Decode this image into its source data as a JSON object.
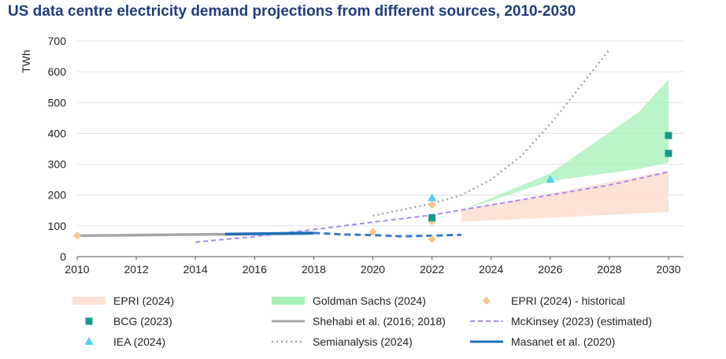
{
  "chart_data": {
    "type": "line",
    "title": "US data centre electricity demand projections from different sources, 2010-2030",
    "ylabel": "TWh",
    "xlabel": "",
    "xlim": [
      2010,
      2030
    ],
    "ylim": [
      0,
      700
    ],
    "xticks": [
      2010,
      2012,
      2014,
      2016,
      2018,
      2020,
      2022,
      2024,
      2026,
      2028,
      2030
    ],
    "yticks": [
      0,
      100,
      200,
      300,
      400,
      500,
      600,
      700
    ],
    "grid": "horizontal",
    "legend_position": "bottom",
    "colors": {
      "epri_band": "#fde0d2",
      "goldman_band": "#a6f0b8",
      "epri_hist": "#f8c58d",
      "bcg": "#14998a",
      "shehabi": "#a6a6a6",
      "mckinsey": "#a98be8",
      "iea": "#4fd1f2",
      "semianalysis": "#a6a6a6",
      "masanet": "#1f6fb7",
      "masanet_proj": "#3a78d0"
    },
    "series": [
      {
        "name": "EPRI (2024)",
        "kind": "band",
        "x": [
          2023,
          2030
        ],
        "lower": [
          113,
          145
        ],
        "upper": [
          150,
          278
        ]
      },
      {
        "name": "Goldman Sachs (2024)",
        "kind": "band",
        "x": [
          2023,
          2026,
          2029,
          2030
        ],
        "lower": [
          150,
          245,
          285,
          305
        ],
        "upper": [
          150,
          270,
          470,
          575
        ]
      },
      {
        "name": "EPRI (2024) - historical",
        "kind": "marker",
        "marker": "diamond",
        "points": [
          [
            2010,
            68
          ],
          [
            2020,
            80
          ],
          [
            2022,
            57
          ],
          [
            2022,
            115
          ],
          [
            2022,
            168
          ]
        ]
      },
      {
        "name": "BCG (2023)",
        "kind": "marker",
        "marker": "square",
        "points": [
          [
            2022,
            126
          ],
          [
            2030,
            335
          ],
          [
            2030,
            393
          ]
        ]
      },
      {
        "name": "Shehabi et al. (2016; 2018)",
        "kind": "line",
        "style": "solid-thick",
        "x": [
          2010,
          2012,
          2014,
          2016,
          2018
        ],
        "y": [
          68,
          70,
          72,
          73,
          75
        ]
      },
      {
        "name": "McKinsey (2023) (estimated)",
        "kind": "line",
        "style": "dashed",
        "x": [
          2014,
          2016,
          2018,
          2020,
          2022,
          2024,
          2026,
          2028,
          2030
        ],
        "y": [
          47,
          65,
          88,
          112,
          135,
          168,
          200,
          232,
          275
        ]
      },
      {
        "name": "IEA (2024)",
        "kind": "marker",
        "marker": "triangle",
        "points": [
          [
            2022,
            190
          ],
          [
            2026,
            250
          ]
        ]
      },
      {
        "name": "Semianalysis (2024)",
        "kind": "line",
        "style": "dotted",
        "x": [
          2020,
          2022,
          2023,
          2024,
          2025,
          2026,
          2027,
          2028
        ],
        "y": [
          133,
          172,
          200,
          250,
          325,
          430,
          550,
          672
        ]
      },
      {
        "name": "Masanet et al. (2020)",
        "kind": "line",
        "style": "solid-thick",
        "x": [
          2015,
          2018
        ],
        "y": [
          73,
          77
        ]
      },
      {
        "name": "",
        "kind": "line",
        "style": "dashed-thick",
        "legend": false,
        "x": [
          2018,
          2019,
          2020,
          2021,
          2022,
          2023
        ],
        "y": [
          77,
          72,
          70,
          66,
          68,
          71
        ]
      }
    ],
    "legend": [
      {
        "label": "EPRI (2024)",
        "swatch": "band",
        "series": 0
      },
      {
        "label": "Goldman Sachs (2024)",
        "swatch": "band",
        "series": 1
      },
      {
        "label": "EPRI (2024) - historical",
        "swatch": "diamond",
        "series": 2
      },
      {
        "label": "BCG (2023)",
        "swatch": "square",
        "series": 3
      },
      {
        "label": "Shehabi et al. (2016; 2018)",
        "swatch": "line",
        "series": 4
      },
      {
        "label": "McKinsey (2023) (estimated)",
        "swatch": "line",
        "series": 5
      },
      {
        "label": "IEA (2024)",
        "swatch": "triangle",
        "series": 6
      },
      {
        "label": "Semianalysis (2024)",
        "swatch": "line",
        "series": 7
      },
      {
        "label": "Masanet et al. (2020)",
        "swatch": "line",
        "series": 8
      }
    ]
  }
}
